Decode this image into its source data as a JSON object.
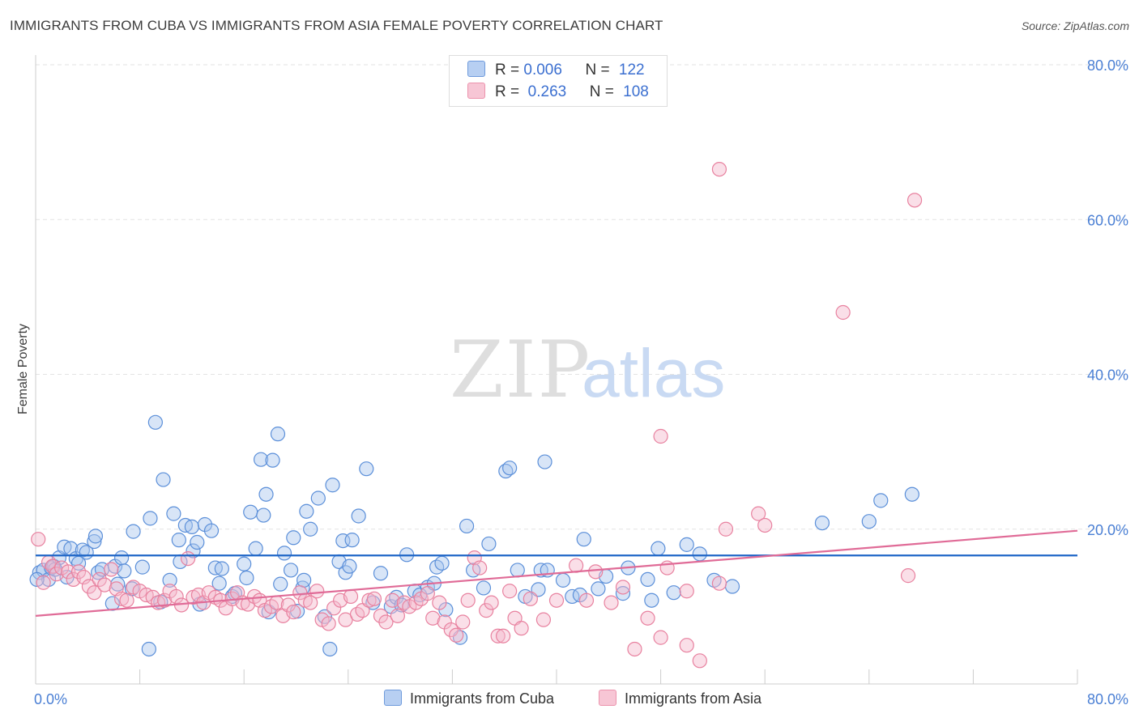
{
  "title": "IMMIGRANTS FROM CUBA VS IMMIGRANTS FROM ASIA FEMALE POVERTY CORRELATION CHART",
  "source": "Source: ZipAtlas.com",
  "watermark": {
    "zip": "ZIP",
    "atlas": "atlas"
  },
  "legend": {
    "rows": [
      {
        "r_label": "R =",
        "r_value": "0.006",
        "n_label": "N =",
        "n_value": "122"
      },
      {
        "r_label": "R =",
        "r_value": " 0.263",
        "n_label": "N =",
        "n_value": "108"
      }
    ]
  },
  "bottom_legend": {
    "cuba": "Immigrants from Cuba",
    "asia": "Immigrants from Asia"
  },
  "colors": {
    "cuba_fill": "#a9c6ee",
    "cuba_stroke": "#5b8fd9",
    "cuba_line": "#1f66c7",
    "asia_fill": "#f5b9cb",
    "asia_stroke": "#e8819f",
    "asia_line": "#e06b97",
    "axis_text": "#4a7fd4"
  },
  "chart_data": {
    "type": "scatter",
    "title": "IMMIGRANTS FROM CUBA VS IMMIGRANTS FROM ASIA FEMALE POVERTY CORRELATION CHART",
    "xlabel": "",
    "ylabel": "Female Poverty",
    "xlim": [
      0,
      80
    ],
    "ylim": [
      0,
      80
    ],
    "x_tick_labels": [
      "0.0%",
      "80.0%"
    ],
    "y_tick_labels": [
      "20.0%",
      "40.0%",
      "60.0%",
      "80.0%"
    ],
    "y_ticks": [
      20,
      40,
      60,
      80
    ],
    "grid": true,
    "series": [
      {
        "name": "Immigrants from Cuba",
        "R": 0.006,
        "N": 122,
        "trend": {
          "x": [
            0,
            80
          ],
          "y": [
            16.6,
            16.6
          ]
        },
        "points": [
          [
            0.3,
            14.4
          ],
          [
            0.6,
            14.7
          ],
          [
            1.0,
            13.5
          ],
          [
            1.2,
            15.0
          ],
          [
            1.4,
            15.2
          ],
          [
            1.5,
            14.8
          ],
          [
            1.8,
            16.3
          ],
          [
            2.2,
            17.7
          ],
          [
            2.4,
            13.8
          ],
          [
            2.7,
            17.5
          ],
          [
            3.1,
            16.2
          ],
          [
            3.3,
            15.6
          ],
          [
            3.6,
            17.3
          ],
          [
            3.9,
            17.0
          ],
          [
            4.5,
            18.4
          ],
          [
            4.8,
            14.4
          ],
          [
            4.6,
            19.1
          ],
          [
            5.1,
            14.8
          ],
          [
            5.9,
            10.4
          ],
          [
            6.1,
            15.2
          ],
          [
            6.3,
            12.9
          ],
          [
            6.6,
            16.3
          ],
          [
            6.8,
            14.6
          ],
          [
            7.4,
            12.3
          ],
          [
            7.5,
            19.7
          ],
          [
            8.2,
            15.1
          ],
          [
            8.7,
            4.5
          ],
          [
            8.8,
            21.4
          ],
          [
            9.2,
            33.8
          ],
          [
            9.6,
            10.6
          ],
          [
            9.8,
            26.4
          ],
          [
            10.3,
            13.4
          ],
          [
            10.6,
            22.0
          ],
          [
            11.0,
            18.6
          ],
          [
            11.1,
            15.8
          ],
          [
            11.5,
            20.5
          ],
          [
            12.0,
            20.3
          ],
          [
            12.1,
            17.2
          ],
          [
            12.4,
            18.3
          ],
          [
            12.6,
            10.3
          ],
          [
            13.0,
            20.6
          ],
          [
            13.5,
            19.8
          ],
          [
            13.8,
            15.0
          ],
          [
            14.1,
            13.0
          ],
          [
            14.3,
            14.9
          ],
          [
            15.1,
            11.3
          ],
          [
            15.3,
            11.7
          ],
          [
            16.0,
            15.5
          ],
          [
            16.2,
            13.7
          ],
          [
            16.5,
            22.2
          ],
          [
            16.9,
            17.5
          ],
          [
            17.3,
            29.0
          ],
          [
            17.5,
            21.8
          ],
          [
            17.7,
            24.5
          ],
          [
            17.9,
            9.3
          ],
          [
            18.2,
            28.9
          ],
          [
            18.6,
            32.3
          ],
          [
            18.8,
            12.9
          ],
          [
            19.1,
            16.9
          ],
          [
            19.6,
            14.7
          ],
          [
            19.8,
            18.9
          ],
          [
            20.1,
            9.4
          ],
          [
            20.5,
            12.4
          ],
          [
            20.6,
            13.4
          ],
          [
            20.8,
            22.3
          ],
          [
            21.1,
            20.0
          ],
          [
            21.7,
            24.0
          ],
          [
            22.2,
            8.7
          ],
          [
            22.6,
            4.5
          ],
          [
            22.8,
            25.7
          ],
          [
            23.3,
            15.8
          ],
          [
            23.6,
            18.5
          ],
          [
            23.8,
            14.4
          ],
          [
            24.1,
            15.2
          ],
          [
            24.3,
            18.6
          ],
          [
            24.8,
            21.7
          ],
          [
            25.4,
            27.8
          ],
          [
            25.9,
            10.5
          ],
          [
            26.5,
            14.3
          ],
          [
            27.3,
            10.0
          ],
          [
            27.7,
            11.2
          ],
          [
            28.1,
            10.2
          ],
          [
            28.5,
            16.7
          ],
          [
            29.1,
            12.0
          ],
          [
            29.5,
            11.5
          ],
          [
            30.1,
            12.5
          ],
          [
            30.6,
            13.0
          ],
          [
            30.8,
            15.1
          ],
          [
            31.2,
            15.6
          ],
          [
            31.5,
            9.6
          ],
          [
            32.6,
            6.0
          ],
          [
            33.1,
            20.4
          ],
          [
            33.6,
            14.7
          ],
          [
            34.4,
            12.4
          ],
          [
            34.8,
            18.1
          ],
          [
            36.1,
            27.5
          ],
          [
            36.4,
            27.9
          ],
          [
            37.0,
            14.7
          ],
          [
            37.6,
            11.3
          ],
          [
            38.6,
            12.2
          ],
          [
            38.8,
            14.7
          ],
          [
            39.1,
            28.7
          ],
          [
            39.3,
            14.7
          ],
          [
            40.5,
            13.4
          ],
          [
            41.2,
            11.3
          ],
          [
            41.8,
            11.5
          ],
          [
            42.1,
            18.7
          ],
          [
            43.2,
            12.3
          ],
          [
            43.8,
            13.9
          ],
          [
            45.1,
            11.7
          ],
          [
            45.5,
            15.0
          ],
          [
            47.0,
            13.5
          ],
          [
            47.8,
            17.5
          ],
          [
            47.3,
            10.8
          ],
          [
            49.0,
            11.8
          ],
          [
            50.0,
            18.0
          ],
          [
            51.0,
            16.8
          ],
          [
            52.1,
            13.4
          ],
          [
            53.5,
            12.6
          ],
          [
            60.4,
            20.8
          ],
          [
            64.0,
            21.0
          ],
          [
            64.9,
            23.7
          ],
          [
            67.3,
            24.5
          ],
          [
            0.1,
            13.5
          ]
        ]
      },
      {
        "name": "Immigrants from Asia",
        "R": 0.263,
        "N": 108,
        "trend": {
          "x": [
            0,
            80
          ],
          "y": [
            8.8,
            19.8
          ]
        },
        "points": [
          [
            0.2,
            18.7
          ],
          [
            0.6,
            13.1
          ],
          [
            1.0,
            15.7
          ],
          [
            1.3,
            15.2
          ],
          [
            1.6,
            14.2
          ],
          [
            2.0,
            15.0
          ],
          [
            2.5,
            14.5
          ],
          [
            2.9,
            13.5
          ],
          [
            3.3,
            14.5
          ],
          [
            3.7,
            13.8
          ],
          [
            4.1,
            12.6
          ],
          [
            4.5,
            11.8
          ],
          [
            4.9,
            13.5
          ],
          [
            5.3,
            12.8
          ],
          [
            5.8,
            14.8
          ],
          [
            6.2,
            12.3
          ],
          [
            6.6,
            11.0
          ],
          [
            7.0,
            10.8
          ],
          [
            7.5,
            12.5
          ],
          [
            8.0,
            12.0
          ],
          [
            8.5,
            11.5
          ],
          [
            9.0,
            11.2
          ],
          [
            9.4,
            10.5
          ],
          [
            9.9,
            10.8
          ],
          [
            10.3,
            12.0
          ],
          [
            10.8,
            11.3
          ],
          [
            11.2,
            10.2
          ],
          [
            11.7,
            16.2
          ],
          [
            12.1,
            11.2
          ],
          [
            12.5,
            11.5
          ],
          [
            12.9,
            10.5
          ],
          [
            13.3,
            11.8
          ],
          [
            13.8,
            11.2
          ],
          [
            14.2,
            10.8
          ],
          [
            14.6,
            9.8
          ],
          [
            15.1,
            11.0
          ],
          [
            15.5,
            11.8
          ],
          [
            15.9,
            10.5
          ],
          [
            16.3,
            10.3
          ],
          [
            16.8,
            11.3
          ],
          [
            17.2,
            10.8
          ],
          [
            17.6,
            9.5
          ],
          [
            18.1,
            10.0
          ],
          [
            18.5,
            10.5
          ],
          [
            19.0,
            8.8
          ],
          [
            19.4,
            10.2
          ],
          [
            19.8,
            9.3
          ],
          [
            20.3,
            11.8
          ],
          [
            20.7,
            10.8
          ],
          [
            21.1,
            10.5
          ],
          [
            21.6,
            12.0
          ],
          [
            22.0,
            8.3
          ],
          [
            22.5,
            7.8
          ],
          [
            22.9,
            9.8
          ],
          [
            23.4,
            10.8
          ],
          [
            23.8,
            8.3
          ],
          [
            24.2,
            11.3
          ],
          [
            24.7,
            9.0
          ],
          [
            25.1,
            9.5
          ],
          [
            25.6,
            10.8
          ],
          [
            26.0,
            11.0
          ],
          [
            26.5,
            8.8
          ],
          [
            26.9,
            8.0
          ],
          [
            27.4,
            10.8
          ],
          [
            27.8,
            8.8
          ],
          [
            28.3,
            10.5
          ],
          [
            28.7,
            10.0
          ],
          [
            29.2,
            10.5
          ],
          [
            29.6,
            11.0
          ],
          [
            30.1,
            11.7
          ],
          [
            30.5,
            8.5
          ],
          [
            31.0,
            10.5
          ],
          [
            31.4,
            8.0
          ],
          [
            31.9,
            7.0
          ],
          [
            32.3,
            6.3
          ],
          [
            32.8,
            8.0
          ],
          [
            33.2,
            10.8
          ],
          [
            33.7,
            16.3
          ],
          [
            34.1,
            15.0
          ],
          [
            34.6,
            9.5
          ],
          [
            35.0,
            10.5
          ],
          [
            35.5,
            6.2
          ],
          [
            35.9,
            6.2
          ],
          [
            36.4,
            12.0
          ],
          [
            36.8,
            8.5
          ],
          [
            37.3,
            7.2
          ],
          [
            38.0,
            11.0
          ],
          [
            39.0,
            8.3
          ],
          [
            40.0,
            10.8
          ],
          [
            41.5,
            15.3
          ],
          [
            42.3,
            10.8
          ],
          [
            43.0,
            14.5
          ],
          [
            44.2,
            10.5
          ],
          [
            45.1,
            12.5
          ],
          [
            46.0,
            4.5
          ],
          [
            47.0,
            8.5
          ],
          [
            48.0,
            6.0
          ],
          [
            48.5,
            15.0
          ],
          [
            50.0,
            12.0
          ],
          [
            52.5,
            13.0
          ],
          [
            55.5,
            22.0
          ],
          [
            56.0,
            20.5
          ],
          [
            62.0,
            48.0
          ],
          [
            67.0,
            14.0
          ],
          [
            67.5,
            62.5
          ],
          [
            53.0,
            20.0
          ],
          [
            50.0,
            5.0
          ],
          [
            51.0,
            3.0
          ],
          [
            52.5,
            66.5
          ],
          [
            48.0,
            32.0
          ]
        ]
      }
    ]
  }
}
